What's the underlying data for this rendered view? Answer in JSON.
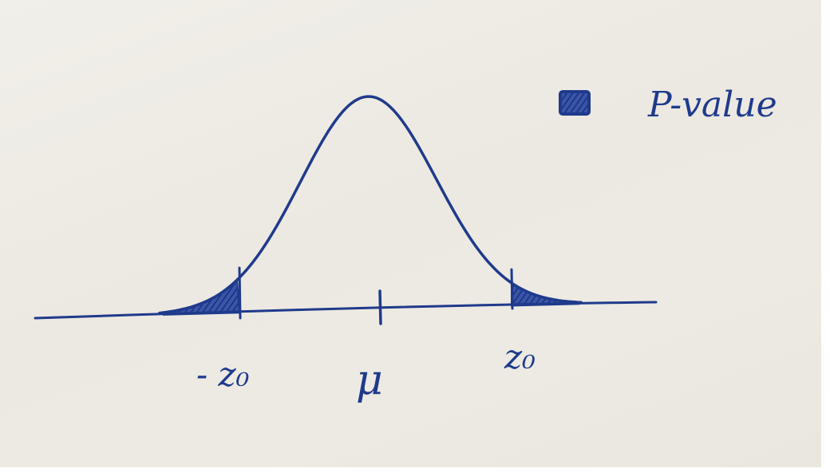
{
  "legend": {
    "label": "P-value"
  },
  "axis_labels": {
    "left_critical": "- z₀",
    "center": "μ",
    "right_critical": "z₀"
  },
  "colors": {
    "ink": "#1f3a8c",
    "paper": "#eceae2"
  }
}
